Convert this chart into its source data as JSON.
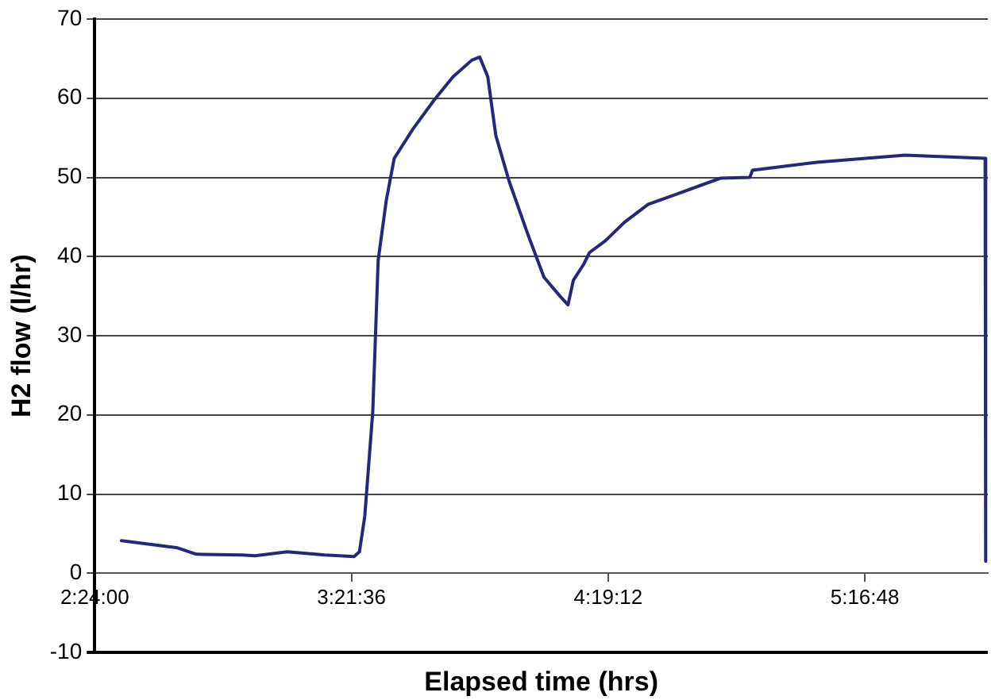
{
  "chart_data": {
    "type": "line",
    "xlabel": "Elapsed time (hrs)",
    "ylabel": "H2 flow (l/hr)",
    "xlim": [
      2.4,
      5.74
    ],
    "xticks": [
      {
        "value": 2.4,
        "label": "2:24:00"
      },
      {
        "value": 3.36,
        "label": "3:21:36"
      },
      {
        "value": 4.32,
        "label": "4:19:12"
      },
      {
        "value": 5.28,
        "label": "5:16:48"
      }
    ],
    "ylim": [
      -10,
      70
    ],
    "yticks": [
      -10,
      0,
      10,
      20,
      30,
      40,
      50,
      60,
      70
    ],
    "grid": "y",
    "legend": false,
    "marker": "none",
    "line_style": "solid",
    "series": [
      {
        "color": "#24287a",
        "x": [
          2.5,
          2.71,
          2.78,
          2.95,
          3.0,
          3.12,
          3.26,
          3.37,
          3.39,
          3.41,
          3.44,
          3.46,
          3.49,
          3.52,
          3.59,
          3.67,
          3.74,
          3.81,
          3.84,
          3.87,
          3.9,
          3.95,
          4.02,
          4.08,
          4.14,
          4.17,
          4.19,
          4.23,
          4.25,
          4.31,
          4.38,
          4.47,
          4.57,
          4.74,
          4.85,
          4.86,
          5.1,
          5.43,
          5.73,
          5.732
        ],
        "values": [
          4.1,
          3.2,
          2.4,
          2.3,
          2.2,
          2.7,
          2.3,
          2.1,
          2.7,
          7.2,
          20.5,
          39.5,
          47,
          52.4,
          56.1,
          59.8,
          62.7,
          64.8,
          65.2,
          62.7,
          55.3,
          49.5,
          42.8,
          37.4,
          35,
          33.9,
          37,
          39.1,
          40.5,
          42,
          44.3,
          46.6,
          47.8,
          49.9,
          50,
          50.9,
          51.9,
          52.8,
          52.4,
          1.5
        ]
      }
    ]
  }
}
